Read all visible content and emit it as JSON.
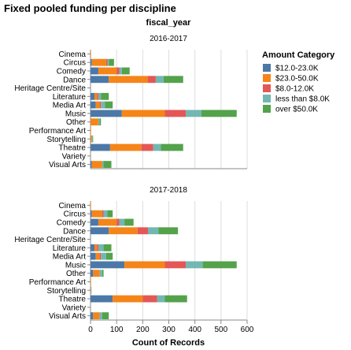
{
  "chart_data": {
    "type": "bar",
    "orientation": "horizontal-stacked",
    "title": "Fixed pooled funding per discipline",
    "facet_title": "fiscal_year",
    "xlabel": "Count of Records",
    "xlim": [
      0,
      600
    ],
    "xticks": [
      0,
      100,
      200,
      300,
      400,
      500,
      600
    ],
    "grid": true,
    "legend_title": "Amount Category",
    "legend_position": "right",
    "categories": [
      "Cinema",
      "Circus",
      "Comedy",
      "Dance",
      "Heritage Centre/Site",
      "Literature",
      "Media Art",
      "Music",
      "Other",
      "Performance Art",
      "Storytelling",
      "Theatre",
      "Variety",
      "Visual Arts"
    ],
    "series_names": [
      "$12.0-23.0K",
      "$23.0-50.0K",
      "$8.0-12.0K",
      "less than $8.0K",
      "over $50.0K"
    ],
    "series_colors": [
      "#4c78a8",
      "#f58518",
      "#e45756",
      "#72b7b2",
      "#54a24b"
    ],
    "panels": [
      {
        "label": "2016-2017",
        "series": [
          {
            "name": "$12.0-23.0K",
            "values": [
              0,
              5,
              30,
              70,
              0,
              15,
              20,
              120,
              0,
              0,
              0,
              75,
              0,
              5
            ]
          },
          {
            "name": "$23.0-50.0K",
            "values": [
              2,
              55,
              70,
              150,
              0,
              10,
              15,
              165,
              30,
              2,
              5,
              120,
              0,
              40
            ]
          },
          {
            "name": "$8.0-12.0K",
            "values": [
              0,
              5,
              10,
              30,
              0,
              5,
              5,
              80,
              0,
              0,
              0,
              45,
              0,
              0
            ]
          },
          {
            "name": "less than $8.0K",
            "values": [
              0,
              5,
              10,
              30,
              0,
              10,
              15,
              60,
              5,
              0,
              3,
              30,
              0,
              5
            ]
          },
          {
            "name": "over $50.0K",
            "values": [
              0,
              20,
              30,
              75,
              0,
              30,
              30,
              135,
              5,
              0,
              2,
              85,
              0,
              30
            ]
          }
        ]
      },
      {
        "label": "2017-2018",
        "series": [
          {
            "name": "$12.0-23.0K",
            "values": [
              0,
              5,
              30,
              70,
              0,
              15,
              20,
              130,
              10,
              0,
              0,
              85,
              0,
              10
            ]
          },
          {
            "name": "$23.0-50.0K",
            "values": [
              2,
              40,
              70,
              110,
              0,
              10,
              15,
              155,
              25,
              2,
              2,
              115,
              0,
              25
            ]
          },
          {
            "name": "$8.0-12.0K",
            "values": [
              0,
              5,
              10,
              40,
              0,
              5,
              5,
              80,
              0,
              0,
              0,
              55,
              0,
              0
            ]
          },
          {
            "name": "less than $8.0K",
            "values": [
              0,
              15,
              20,
              40,
              0,
              20,
              20,
              65,
              10,
              0,
              2,
              30,
              0,
              10
            ]
          },
          {
            "name": "over $50.0K",
            "values": [
              0,
              20,
              35,
              75,
              0,
              30,
              25,
              130,
              5,
              0,
              0,
              85,
              0,
              25
            ]
          }
        ]
      }
    ]
  }
}
